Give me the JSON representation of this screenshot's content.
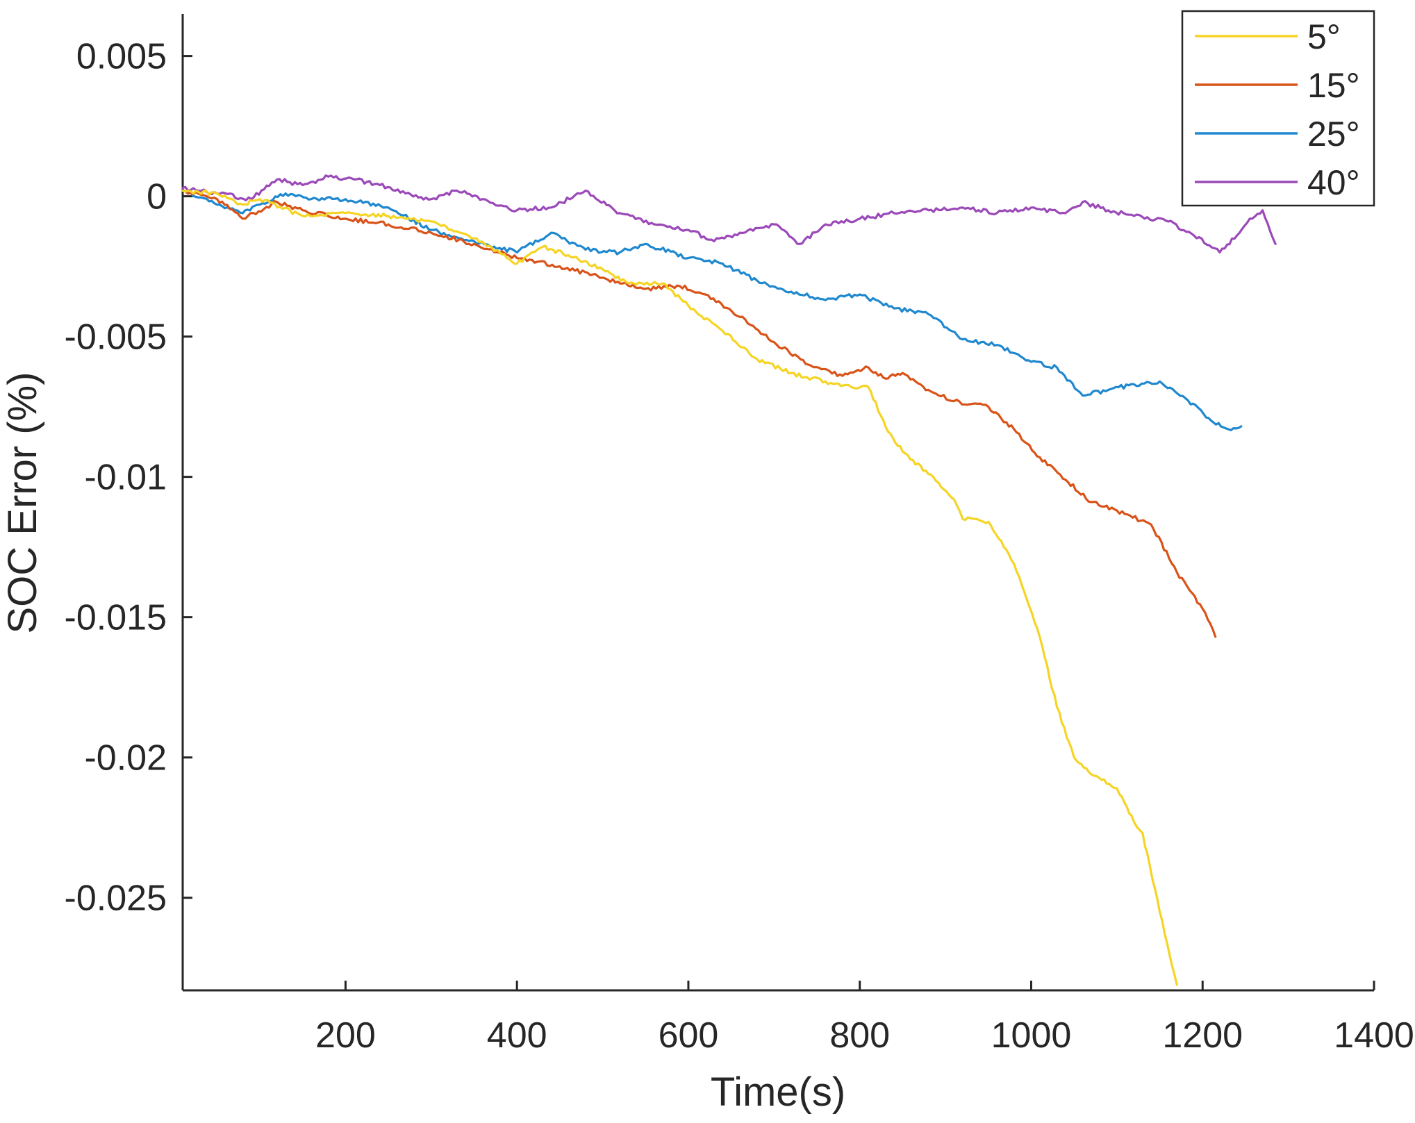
{
  "chart_data": {
    "type": "line",
    "title": "",
    "xlabel": "Time(s)",
    "ylabel": "SOC Error (%)",
    "xlim": [
      10,
      1400
    ],
    "ylim": [
      -0.0283,
      0.0065
    ],
    "xticks": [
      200,
      400,
      600,
      800,
      1000,
      1200,
      1400
    ],
    "xtick_labels": [
      "200",
      "400",
      "600",
      "800",
      "1000",
      "1200",
      "1400"
    ],
    "yticks": [
      0.005,
      0,
      -0.005,
      -0.01,
      -0.015,
      -0.02,
      -0.025
    ],
    "ytick_labels": [
      "0.005",
      "0",
      "-0.005",
      "-0.01",
      "-0.015",
      "-0.02",
      "-0.025"
    ],
    "grid": false,
    "legend_position": "top-right",
    "series": [
      {
        "name": "5°",
        "color": "#EDB120",
        "display_color": "#F5D423",
        "points": [
          [
            10,
            0.0002
          ],
          [
            50,
            0.0001
          ],
          [
            80,
            -0.0003
          ],
          [
            100,
            -0.0001
          ],
          [
            150,
            -0.0007
          ],
          [
            200,
            -0.0006
          ],
          [
            250,
            -0.0007
          ],
          [
            300,
            -0.0009
          ],
          [
            350,
            -0.0015
          ],
          [
            400,
            -0.0024
          ],
          [
            430,
            -0.0018
          ],
          [
            460,
            -0.0021
          ],
          [
            500,
            -0.0026
          ],
          [
            530,
            -0.0031
          ],
          [
            570,
            -0.0031
          ],
          [
            600,
            -0.0039
          ],
          [
            640,
            -0.0048
          ],
          [
            680,
            -0.0058
          ],
          [
            720,
            -0.0063
          ],
          [
            760,
            -0.0066
          ],
          [
            790,
            -0.0068
          ],
          [
            810,
            -0.0068
          ],
          [
            830,
            -0.0082
          ],
          [
            850,
            -0.0091
          ],
          [
            880,
            -0.0099
          ],
          [
            910,
            -0.0108
          ],
          [
            920,
            -0.0115
          ],
          [
            950,
            -0.0116
          ],
          [
            980,
            -0.0131
          ],
          [
            1010,
            -0.0157
          ],
          [
            1030,
            -0.0182
          ],
          [
            1050,
            -0.02
          ],
          [
            1070,
            -0.0206
          ],
          [
            1100,
            -0.0211
          ],
          [
            1120,
            -0.0223
          ],
          [
            1130,
            -0.0227
          ],
          [
            1150,
            -0.0255
          ],
          [
            1170,
            -0.0281
          ]
        ]
      },
      {
        "name": "15°",
        "color": "#D95319",
        "display_color": "#D95319",
        "points": [
          [
            10,
            0.0002
          ],
          [
            50,
            -0.0001
          ],
          [
            80,
            -0.0008
          ],
          [
            120,
            -0.0002
          ],
          [
            150,
            -0.0005
          ],
          [
            200,
            -0.0008
          ],
          [
            250,
            -0.001
          ],
          [
            300,
            -0.0013
          ],
          [
            350,
            -0.0017
          ],
          [
            400,
            -0.0022
          ],
          [
            450,
            -0.0025
          ],
          [
            500,
            -0.0029
          ],
          [
            550,
            -0.0033
          ],
          [
            590,
            -0.0032
          ],
          [
            620,
            -0.0035
          ],
          [
            660,
            -0.0043
          ],
          [
            700,
            -0.0052
          ],
          [
            740,
            -0.006
          ],
          [
            780,
            -0.0064
          ],
          [
            810,
            -0.0061
          ],
          [
            830,
            -0.0065
          ],
          [
            850,
            -0.0063
          ],
          [
            880,
            -0.0069
          ],
          [
            910,
            -0.0073
          ],
          [
            950,
            -0.0075
          ],
          [
            980,
            -0.0083
          ],
          [
            1010,
            -0.0093
          ],
          [
            1040,
            -0.0101
          ],
          [
            1070,
            -0.0109
          ],
          [
            1100,
            -0.0112
          ],
          [
            1140,
            -0.0117
          ],
          [
            1170,
            -0.0134
          ],
          [
            1200,
            -0.0147
          ],
          [
            1215,
            -0.0157
          ]
        ]
      },
      {
        "name": "25°",
        "color": "#0072BD",
        "display_color": "#1F88CF",
        "points": [
          [
            10,
            0.0002
          ],
          [
            50,
            -0.0003
          ],
          [
            80,
            -0.0006
          ],
          [
            100,
            -0.0003
          ],
          [
            130,
            0.0001
          ],
          [
            160,
            -0.0001
          ],
          [
            200,
            -0.0001
          ],
          [
            250,
            -0.0004
          ],
          [
            300,
            -0.0012
          ],
          [
            350,
            -0.0016
          ],
          [
            400,
            -0.002
          ],
          [
            440,
            -0.0013
          ],
          [
            480,
            -0.0019
          ],
          [
            520,
            -0.002
          ],
          [
            550,
            -0.0017
          ],
          [
            600,
            -0.0022
          ],
          [
            640,
            -0.0024
          ],
          [
            680,
            -0.003
          ],
          [
            720,
            -0.0034
          ],
          [
            760,
            -0.0037
          ],
          [
            800,
            -0.0035
          ],
          [
            840,
            -0.004
          ],
          [
            880,
            -0.0042
          ],
          [
            920,
            -0.0051
          ],
          [
            960,
            -0.0053
          ],
          [
            1000,
            -0.0059
          ],
          [
            1030,
            -0.0061
          ],
          [
            1060,
            -0.0071
          ],
          [
            1090,
            -0.0069
          ],
          [
            1120,
            -0.0067
          ],
          [
            1150,
            -0.0066
          ],
          [
            1180,
            -0.0072
          ],
          [
            1210,
            -0.008
          ],
          [
            1230,
            -0.0083
          ],
          [
            1245,
            -0.0082
          ]
        ]
      },
      {
        "name": "40°",
        "color": "#7E2F8E",
        "display_color": "#9B49B8",
        "points": [
          [
            10,
            0.0003
          ],
          [
            50,
            0.0001
          ],
          [
            90,
            -0.0001
          ],
          [
            120,
            0.0006
          ],
          [
            150,
            0.0004
          ],
          [
            180,
            0.0007
          ],
          [
            210,
            0.0006
          ],
          [
            240,
            0.0004
          ],
          [
            270,
            0.0001
          ],
          [
            300,
            -0.0001
          ],
          [
            330,
            0.0002
          ],
          [
            360,
            -0.0001
          ],
          [
            400,
            -0.0005
          ],
          [
            440,
            -0.0004
          ],
          [
            480,
            0.0002
          ],
          [
            520,
            -0.0006
          ],
          [
            560,
            -0.001
          ],
          [
            600,
            -0.0012
          ],
          [
            630,
            -0.0016
          ],
          [
            660,
            -0.0013
          ],
          [
            700,
            -0.001
          ],
          [
            730,
            -0.0017
          ],
          [
            760,
            -0.001
          ],
          [
            800,
            -0.0008
          ],
          [
            840,
            -0.0006
          ],
          [
            880,
            -0.0005
          ],
          [
            920,
            -0.0004
          ],
          [
            960,
            -0.0006
          ],
          [
            1000,
            -0.0004
          ],
          [
            1040,
            -0.0006
          ],
          [
            1060,
            -0.0002
          ],
          [
            1090,
            -0.0005
          ],
          [
            1120,
            -0.0007
          ],
          [
            1160,
            -0.0009
          ],
          [
            1190,
            -0.0014
          ],
          [
            1220,
            -0.002
          ],
          [
            1240,
            -0.0014
          ],
          [
            1255,
            -0.0008
          ],
          [
            1270,
            -0.0005
          ],
          [
            1285,
            -0.0017
          ]
        ]
      }
    ]
  }
}
